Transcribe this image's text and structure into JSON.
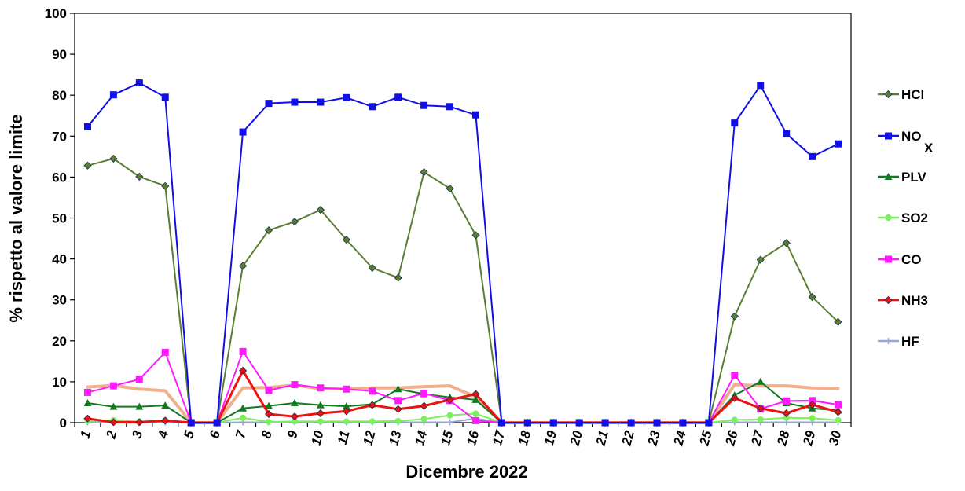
{
  "chart_data": {
    "type": "line",
    "xlabel": "Dicembre 2022",
    "ylabel": "% rispetto al valore limite",
    "ylim": [
      0,
      100
    ],
    "yticks": [
      "0",
      "10",
      "20",
      "30",
      "40",
      "50",
      "60",
      "70",
      "80",
      "90",
      "100"
    ],
    "x": [
      "1",
      "2",
      "3",
      "4",
      "5",
      "6",
      "7",
      "8",
      "9",
      "10",
      "11",
      "12",
      "13",
      "14",
      "15",
      "16",
      "17",
      "18",
      "19",
      "20",
      "21",
      "22",
      "23",
      "24",
      "25",
      "26",
      "27",
      "28",
      "29",
      "30"
    ],
    "grid": false,
    "legend_position": "right",
    "series": [
      {
        "name": "HCl",
        "color": "#5a7f32",
        "marker": "diamond",
        "values": [
          62.8,
          64.5,
          60.1,
          57.8,
          0,
          0,
          38.3,
          47,
          49.1,
          52,
          44.7,
          37.8,
          35.4,
          61.2,
          57.2,
          45.8,
          0,
          0,
          0,
          0,
          0,
          0,
          0,
          0,
          0,
          26,
          39.8,
          43.9,
          30.7,
          24.6
        ]
      },
      {
        "name": "NOX",
        "color": "#1010e6",
        "marker": "square",
        "values": [
          72.3,
          80.1,
          83,
          79.5,
          0,
          0,
          71,
          78,
          78.3,
          78.3,
          79.4,
          77.2,
          79.5,
          77.5,
          77.2,
          75.2,
          0,
          0,
          0,
          0,
          0,
          0,
          0,
          0,
          0,
          73.2,
          82.4,
          70.6,
          65,
          68.1
        ]
      },
      {
        "name": "PLV",
        "color": "#117a1e",
        "marker": "triangle",
        "values": [
          4.8,
          3.9,
          3.9,
          4.2,
          0,
          0,
          3.5,
          4.1,
          4.8,
          4.3,
          4,
          4.5,
          8.2,
          7,
          6.2,
          5.6,
          0,
          0,
          0,
          0,
          0,
          0,
          0,
          0,
          0,
          6.7,
          10,
          4.8,
          3.5,
          3
        ]
      },
      {
        "name": "SO2",
        "color": "#7cf05a",
        "marker": "circle",
        "values": [
          0.4,
          0.6,
          0.3,
          0.6,
          0,
          0,
          1.2,
          0.2,
          0.3,
          0.3,
          0.3,
          0.3,
          0.4,
          0.9,
          1.8,
          2.2,
          0,
          0,
          0,
          0,
          0,
          0,
          0,
          0,
          0,
          0.7,
          0.8,
          1.2,
          1.1,
          0.6
        ]
      },
      {
        "name": "CO",
        "color": "#ff1aff",
        "marker": "square",
        "values": [
          7.4,
          9,
          10.6,
          17.2,
          0,
          0,
          17.4,
          7.9,
          9.3,
          8.5,
          8.2,
          7.7,
          5.4,
          7.2,
          5.4,
          0.5,
          0,
          0,
          0,
          0,
          0,
          0,
          0,
          0,
          0,
          11.6,
          3.4,
          5.3,
          5.4,
          4.4
        ]
      },
      {
        "name": "NH3",
        "color": "#ee1111",
        "marker": "diamond",
        "values": [
          1,
          0.1,
          0.1,
          0.5,
          0,
          0,
          12.7,
          2.1,
          1.5,
          2.3,
          2.8,
          4.3,
          3.3,
          4.1,
          5.6,
          7,
          0,
          0,
          0,
          0,
          0,
          0,
          0,
          0,
          0,
          6,
          3.5,
          2.3,
          4.4,
          2.6
        ]
      },
      {
        "name": "HF",
        "color": "#96a6d6",
        "marker": "plus",
        "values": [
          0.1,
          0.1,
          0.1,
          0.1,
          0,
          0,
          0.1,
          0.1,
          0.1,
          0.1,
          0.1,
          0.1,
          0.1,
          0.1,
          0.1,
          1,
          0,
          0,
          0,
          0,
          0,
          0,
          0,
          0,
          0,
          0.1,
          0.1,
          0.1,
          0.1,
          0.1
        ]
      },
      {
        "name": "",
        "color": "#f0b090",
        "marker": "none",
        "values": [
          8.7,
          9.1,
          8.2,
          7.8,
          0,
          0,
          8.5,
          8.6,
          9.2,
          8.3,
          8.3,
          8.5,
          8.5,
          8.8,
          9,
          6.3,
          0,
          0,
          0,
          0,
          0,
          0,
          0,
          0,
          0,
          9.3,
          9,
          9,
          8.5,
          8.4
        ]
      }
    ]
  },
  "legend": {
    "items": [
      {
        "label": "HCl",
        "series": 0
      },
      {
        "label": "NO",
        "label2": "X",
        "series": 1
      },
      {
        "label": "PLV",
        "series": 2
      },
      {
        "label": "SO2",
        "series": 3
      },
      {
        "label": "CO",
        "series": 4
      },
      {
        "label": "NH3",
        "series": 5
      },
      {
        "label": "HF",
        "series": 6
      }
    ]
  }
}
